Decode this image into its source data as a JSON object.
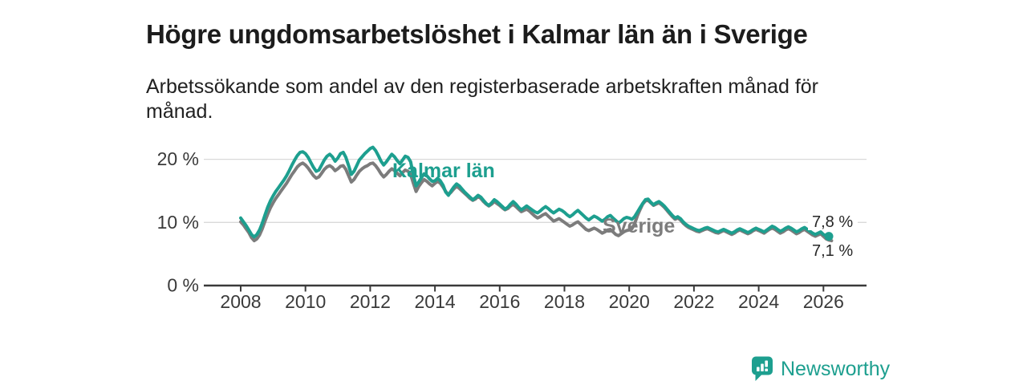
{
  "header": {
    "title": "Högre ungdomsarbetslöshet i Kalmar län än i Sverige",
    "subtitle": "Arbetssökande som andel av den registerbaserade arbetskraften månad för månad."
  },
  "branding": {
    "logo_text": "Newsworthy",
    "logo_icon": "newsworthy-bar-chart-bubble-icon",
    "brand_color": "#1d9f8f"
  },
  "colors": {
    "kalmar_teal": "#1d9f8f",
    "sverige_gray": "#7c7c7c",
    "grid": "#d9d9d9",
    "axis": "#3a3a3a",
    "text_dark": "#1c1c1c"
  },
  "chart_data": {
    "type": "line",
    "title": "Högre ungdomsarbetslöshet i Kalmar län än i Sverige",
    "subtitle": "Arbetssökande som andel av den registerbaserade arbetskraften månad för månad.",
    "x_unit": "month",
    "x_start": "2008-01",
    "grid": "horizontal",
    "legend_position": "inline-labels",
    "ylim": [
      0,
      25
    ],
    "yticks": [
      0,
      10,
      20
    ],
    "y_tick_labels": [
      "0 %",
      "10 %",
      "20 %"
    ],
    "x_tick_labels": [
      "2008",
      "2010",
      "2012",
      "2014",
      "2016",
      "2018",
      "2020",
      "2022",
      "2024",
      "2026"
    ],
    "series": [
      {
        "name": "Kalmar län",
        "color": "#1d9f8f",
        "end_label": "7,8 %",
        "end_value": 7.8,
        "values": [
          10.7,
          10.1,
          9.5,
          8.8,
          8.1,
          7.7,
          8.1,
          8.8,
          9.9,
          11.2,
          12.4,
          13.4,
          14.2,
          14.9,
          15.5,
          16.1,
          16.7,
          17.4,
          18.2,
          19.1,
          19.9,
          20.6,
          21.1,
          21.2,
          20.9,
          20.3,
          19.5,
          18.7,
          18.1,
          18.3,
          19.1,
          19.9,
          20.5,
          20.8,
          20.4,
          19.7,
          20.2,
          20.9,
          21.1,
          20.3,
          19.0,
          17.6,
          18.1,
          19.0,
          19.9,
          20.4,
          20.9,
          21.3,
          21.7,
          21.9,
          21.4,
          20.6,
          19.7,
          19.1,
          19.6,
          20.2,
          20.8,
          20.4,
          19.8,
          19.3,
          19.9,
          20.5,
          20.3,
          19.6,
          17.5,
          15.8,
          16.4,
          17.1,
          17.7,
          17.4,
          16.9,
          16.5,
          16.6,
          17.0,
          16.6,
          15.9,
          14.8,
          14.3,
          15.0,
          15.6,
          16.1,
          15.8,
          15.3,
          14.8,
          14.4,
          14.0,
          13.6,
          13.9,
          14.3,
          14.0,
          13.5,
          13.0,
          12.7,
          13.1,
          13.6,
          13.3,
          12.9,
          12.5,
          12.1,
          12.4,
          12.9,
          13.3,
          12.9,
          12.4,
          12.0,
          12.3,
          12.6,
          12.3,
          12.0,
          11.7,
          11.5,
          11.8,
          12.2,
          12.5,
          12.2,
          11.8,
          11.5,
          11.8,
          12.1,
          11.9,
          11.6,
          11.2,
          10.9,
          11.2,
          11.6,
          11.9,
          11.5,
          11.1,
          10.7,
          10.4,
          10.7,
          11.0,
          10.8,
          10.5,
          10.2,
          10.5,
          10.9,
          11.1,
          10.7,
          10.3,
          9.9,
          10.2,
          10.6,
          10.8,
          10.7,
          10.5,
          10.9,
          11.6,
          12.3,
          13.0,
          13.6,
          13.7,
          13.2,
          12.8,
          13.1,
          13.3,
          13.0,
          12.6,
          12.1,
          11.6,
          11.1,
          10.7,
          10.9,
          10.6,
          10.1,
          9.7,
          9.4,
          9.2,
          9.0,
          8.8,
          8.7,
          8.9,
          9.1,
          9.2,
          9.0,
          8.8,
          8.6,
          8.5,
          8.7,
          8.9,
          8.7,
          8.5,
          8.3,
          8.5,
          8.8,
          9.0,
          8.8,
          8.6,
          8.4,
          8.6,
          8.9,
          9.1,
          8.9,
          8.7,
          8.5,
          8.8,
          9.1,
          9.4,
          9.2,
          8.9,
          8.6,
          8.8,
          9.1,
          9.3,
          9.1,
          8.8,
          8.5,
          8.7,
          9.0,
          9.2,
          8.9,
          8.6,
          8.3,
          8.1,
          8.3,
          8.5,
          8.1,
          7.9,
          7.8
        ]
      },
      {
        "name": "Sverige",
        "color": "#7c7c7c",
        "end_label": "7,1 %",
        "end_value": 7.1,
        "values": [
          10.1,
          9.6,
          9.0,
          8.4,
          7.6,
          7.1,
          7.4,
          8.0,
          9.0,
          10.2,
          11.3,
          12.3,
          13.1,
          13.8,
          14.4,
          15.0,
          15.6,
          16.2,
          16.9,
          17.6,
          18.2,
          18.8,
          19.2,
          19.4,
          19.1,
          18.6,
          18.0,
          17.4,
          17.0,
          17.2,
          17.8,
          18.4,
          18.8,
          19.0,
          18.7,
          18.2,
          18.5,
          18.9,
          19.0,
          18.4,
          17.4,
          16.4,
          16.8,
          17.5,
          18.1,
          18.5,
          18.8,
          19.0,
          19.3,
          19.4,
          19.0,
          18.4,
          17.7,
          17.2,
          17.6,
          18.1,
          18.5,
          18.2,
          17.8,
          17.4,
          17.9,
          18.3,
          18.1,
          17.6,
          16.2,
          14.9,
          15.7,
          16.3,
          16.8,
          16.5,
          16.1,
          15.8,
          16.2,
          16.5,
          16.2,
          15.6,
          14.9,
          14.4,
          14.8,
          15.3,
          15.7,
          15.4,
          15.0,
          14.6,
          14.2,
          13.8,
          13.5,
          13.7,
          14.1,
          13.8,
          13.3,
          12.9,
          12.6,
          12.9,
          13.3,
          13.0,
          12.7,
          12.3,
          12.0,
          12.2,
          12.6,
          12.9,
          12.5,
          12.1,
          11.7,
          11.9,
          12.1,
          11.8,
          11.4,
          11.0,
          10.7,
          10.9,
          11.2,
          11.4,
          11.0,
          10.6,
          10.2,
          10.4,
          10.6,
          10.3,
          10.0,
          9.7,
          9.4,
          9.6,
          9.9,
          10.1,
          9.7,
          9.3,
          8.9,
          8.7,
          8.9,
          9.1,
          8.9,
          8.6,
          8.3,
          8.5,
          8.8,
          8.9,
          8.5,
          8.1,
          7.9,
          8.2,
          8.5,
          8.7,
          8.8,
          9.0,
          9.8,
          11.0,
          12.0,
          12.9,
          13.4,
          13.5,
          13.1,
          12.7,
          12.9,
          13.1,
          12.8,
          12.4,
          11.9,
          11.4,
          10.9,
          10.5,
          10.7,
          10.4,
          9.9,
          9.5,
          9.2,
          9.0,
          8.8,
          8.6,
          8.5,
          8.7,
          8.9,
          9.0,
          8.8,
          8.6,
          8.4,
          8.3,
          8.5,
          8.7,
          8.5,
          8.3,
          8.1,
          8.3,
          8.6,
          8.8,
          8.6,
          8.4,
          8.2,
          8.4,
          8.7,
          8.9,
          8.7,
          8.5,
          8.3,
          8.6,
          8.9,
          9.1,
          8.9,
          8.6,
          8.3,
          8.5,
          8.8,
          9.0,
          8.8,
          8.5,
          8.2,
          8.4,
          8.7,
          8.9,
          8.6,
          8.3,
          8.0,
          7.8,
          8.0,
          8.2,
          7.8,
          7.4,
          7.2,
          7.1
        ]
      }
    ]
  }
}
